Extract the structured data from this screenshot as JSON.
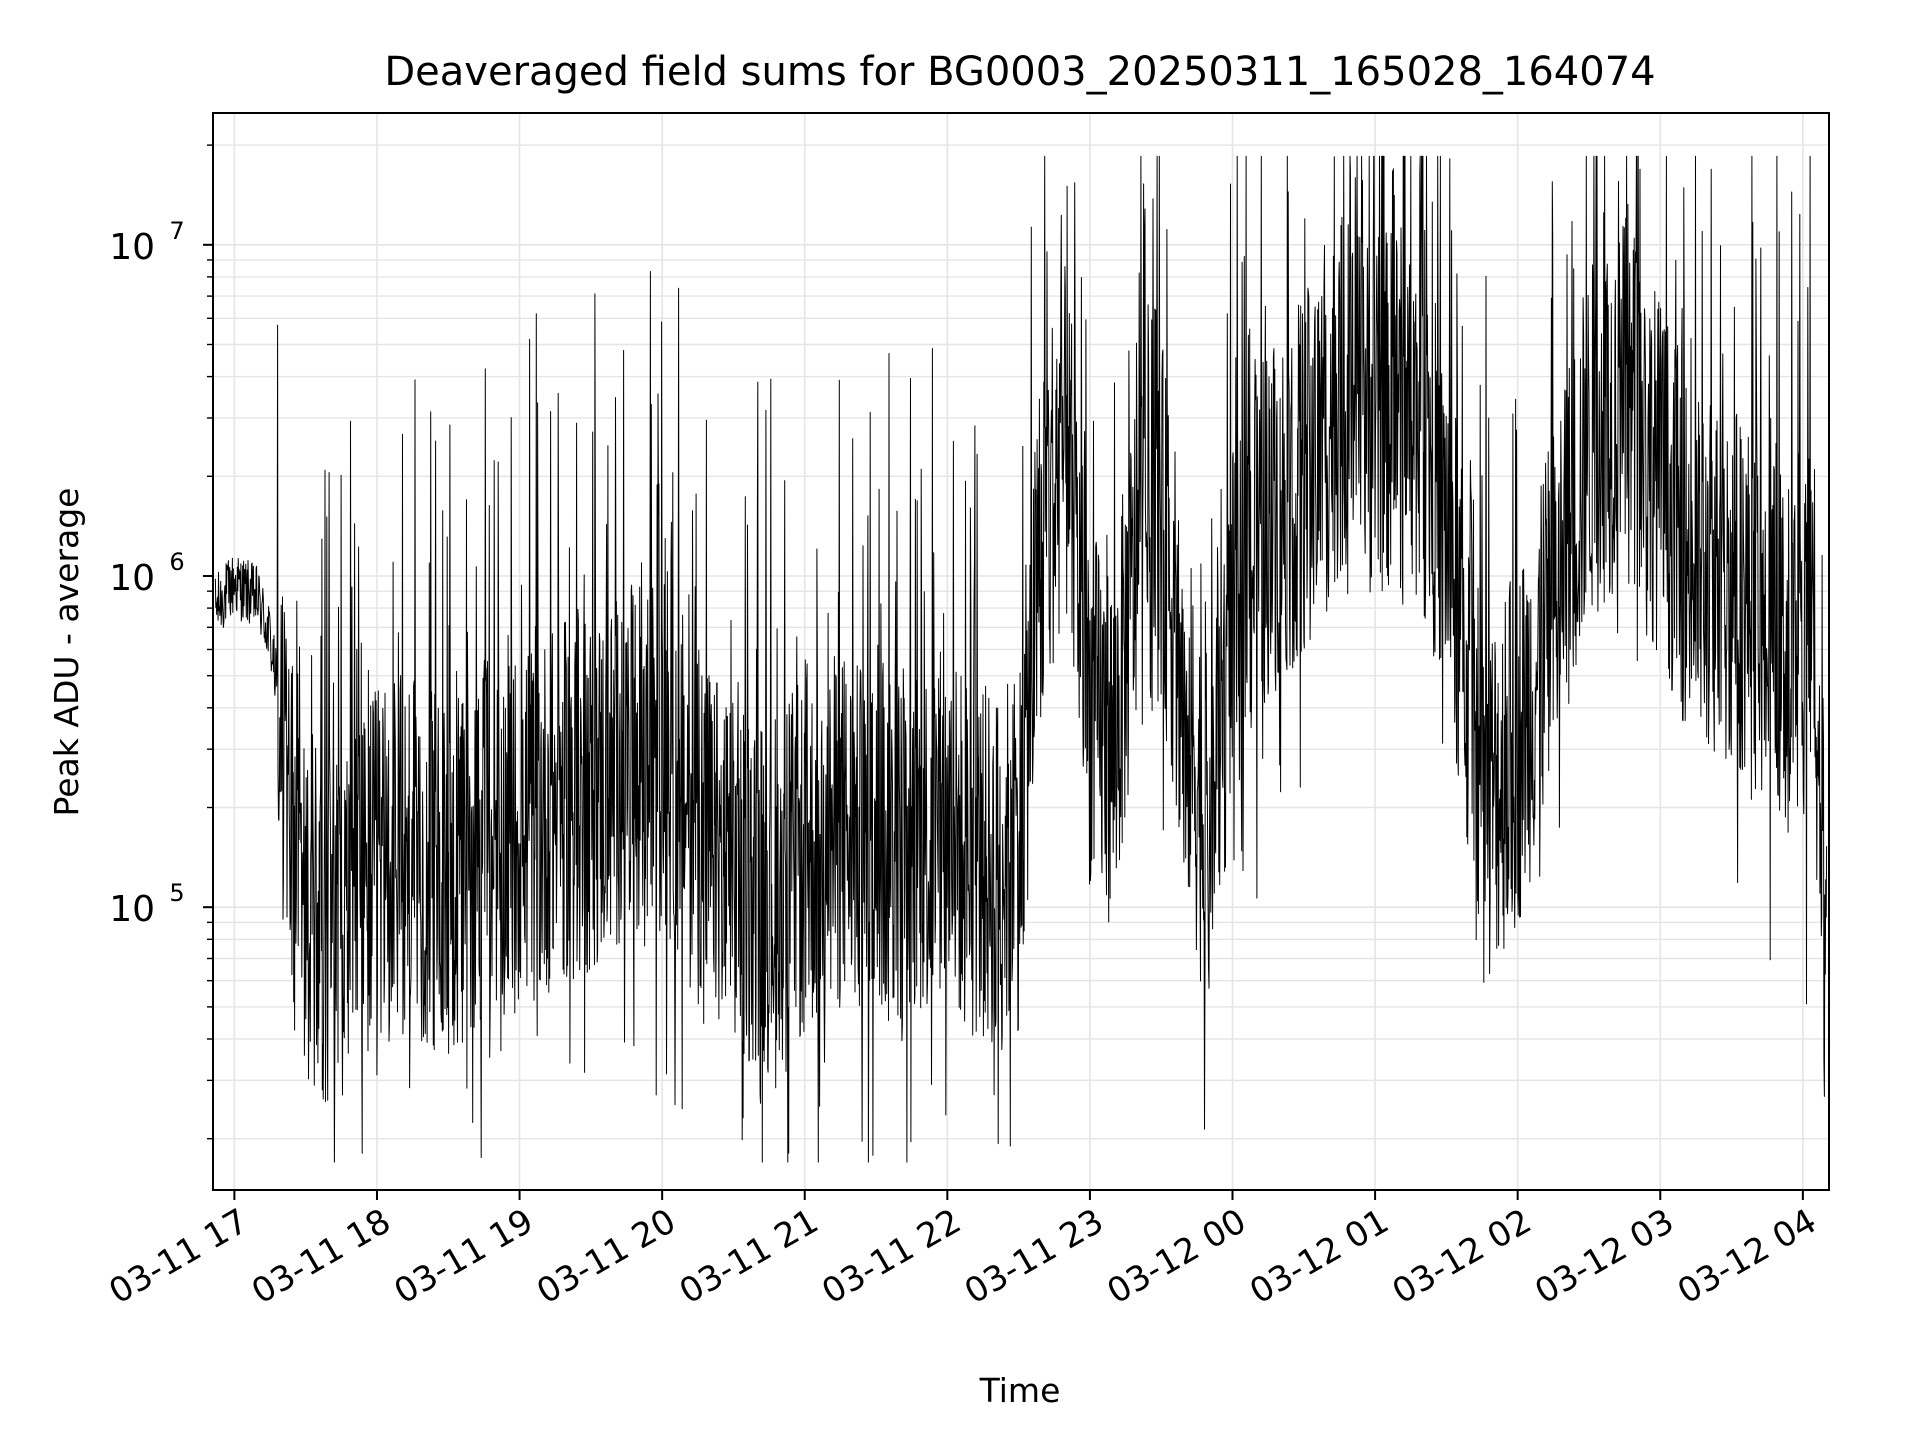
{
  "chart_data": {
    "type": "line",
    "title": "Deaveraged field sums for BG0003_20250311_165028_164074",
    "xlabel": "Time",
    "ylabel": "Peak ADU - average",
    "yscale": "log",
    "ylim": [
      14000,
      25000000
    ],
    "xlim": [
      "03-11 16:51",
      "03-12 04:11"
    ],
    "grid": true,
    "line_color": "#000000",
    "grid_color": "#e5e5e5",
    "x_ticks": [
      "03-11 17",
      "03-11 18",
      "03-11 19",
      "03-11 20",
      "03-11 21",
      "03-11 22",
      "03-11 23",
      "03-12 00",
      "03-12 01",
      "03-12 02",
      "03-12 03",
      "03-12 04"
    ],
    "y_ticks": [
      {
        "base": "10",
        "exp": "5",
        "value": 100000
      },
      {
        "base": "10",
        "exp": "6",
        "value": 1000000
      },
      {
        "base": "10",
        "exp": "7",
        "value": 10000000
      }
    ],
    "series": [
      {
        "x": [
          "03-11 16:52",
          "03-11 17:00",
          "03-11 17:10",
          "03-11 17:15",
          "03-11 17:18",
          "03-11 17:20",
          "03-11 17:25",
          "03-11 17:30",
          "03-11 17:40",
          "03-11 17:50",
          "03-11 18:00",
          "03-11 18:15",
          "03-11 18:30",
          "03-11 18:45",
          "03-11 19:00",
          "03-11 19:15",
          "03-11 19:30",
          "03-11 19:45",
          "03-11 20:00",
          "03-11 20:15",
          "03-11 20:30",
          "03-11 20:45",
          "03-11 21:00",
          "03-11 21:15",
          "03-11 21:30",
          "03-11 21:45",
          "03-11 22:00",
          "03-11 22:10",
          "03-11 22:20",
          "03-11 22:30",
          "03-11 22:40",
          "03-11 22:50",
          "03-11 23:00",
          "03-11 23:10",
          "03-11 23:20",
          "03-11 23:30",
          "03-11 23:40",
          "03-11 23:50",
          "03-12 00:00",
          "03-12 00:15",
          "03-12 00:30",
          "03-12 00:45",
          "03-12 01:00",
          "03-12 01:15",
          "03-12 01:30",
          "03-12 01:45",
          "03-12 02:00",
          "03-12 02:15",
          "03-12 02:30",
          "03-12 02:45",
          "03-12 03:00",
          "03-12 03:15",
          "03-12 03:30",
          "03-12 03:45",
          "03-12 04:00",
          "03-12 04:05",
          "03-12 04:10"
        ],
        "y": [
          800000,
          950000,
          850000,
          650000,
          450000,
          300000,
          150000,
          100000,
          90000,
          100000,
          130000,
          150000,
          110000,
          160000,
          170000,
          200000,
          220000,
          260000,
          300000,
          180000,
          120000,
          110000,
          140000,
          170000,
          140000,
          160000,
          170000,
          140000,
          130000,
          150000,
          1500000,
          2500000,
          400000,
          300000,
          1200000,
          1500000,
          400000,
          150000,
          700000,
          1500000,
          2000000,
          3500000,
          3000000,
          3500000,
          1500000,
          200000,
          300000,
          800000,
          2500000,
          3500000,
          2000000,
          1000000,
          1000000,
          700000,
          500000,
          900000,
          60000
        ]
      }
    ]
  }
}
